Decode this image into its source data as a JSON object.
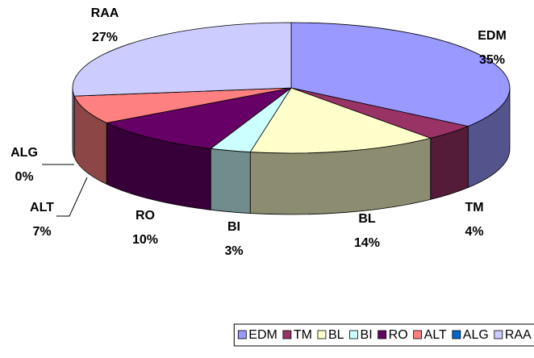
{
  "chart_data": {
    "type": "pie3d",
    "categories": [
      "EDM",
      "TM",
      "BL",
      "BI",
      "RO",
      "ALT",
      "ALG",
      "RAA"
    ],
    "values": [
      35,
      4,
      14,
      3,
      10,
      7,
      0,
      27
    ],
    "value_labels": [
      "35%",
      "4%",
      "14%",
      "3%",
      "10%",
      "7%",
      "0%",
      "27%"
    ],
    "colors": [
      "#9999ff",
      "#993366",
      "#ffffcc",
      "#ccffff",
      "#660066",
      "#ff8080",
      "#0066cc",
      "#ccccff"
    ],
    "legend": "bottom"
  }
}
